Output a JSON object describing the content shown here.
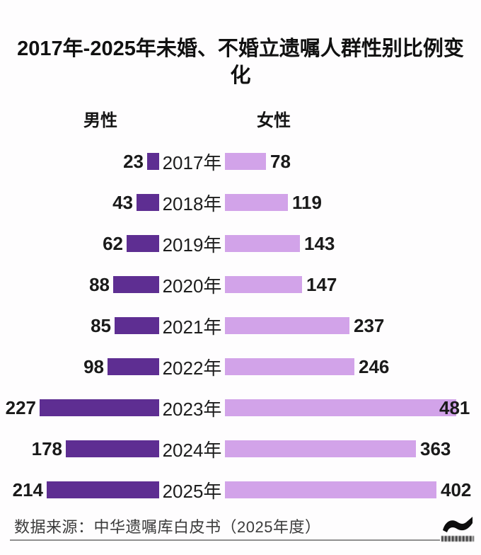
{
  "chart": {
    "title": "2017年-2025年未婚、不婚立遗嘱人群性别比例变化",
    "legend": {
      "male": "男性",
      "female": "女性"
    },
    "source": "数据来源：中华遗嘱库白皮书（2025年度）",
    "colors": {
      "male_bar": "#5e2e92",
      "female_bar": "#d2a3e9",
      "title_text": "#111111",
      "source_text": "#3b3b3b",
      "divider": "#8f8f8f",
      "logo": "#0d0d0d"
    }
  },
  "chart_data": {
    "type": "bar",
    "orientation": "diverging-horizontal",
    "title": "2017年-2025年未婚、不婚立遗嘱人群性别比例变化",
    "categories": [
      "2017年",
      "2018年",
      "2019年",
      "2020年",
      "2021年",
      "2022年",
      "2023年",
      "2024年",
      "2025年"
    ],
    "series": [
      {
        "name": "男性",
        "side": "left",
        "color": "#5e2e92",
        "values": [
          23,
          43,
          62,
          88,
          85,
          98,
          227,
          178,
          214
        ]
      },
      {
        "name": "女性",
        "side": "right",
        "color": "#d2a3e9",
        "values": [
          78,
          119,
          143,
          147,
          237,
          246,
          481,
          363,
          402
        ]
      }
    ],
    "value_labels": "at-bar-ends",
    "legend_position": "top",
    "grid": false,
    "axis": "none"
  },
  "logo": {
    "name": "wave-swoosh-logo"
  }
}
